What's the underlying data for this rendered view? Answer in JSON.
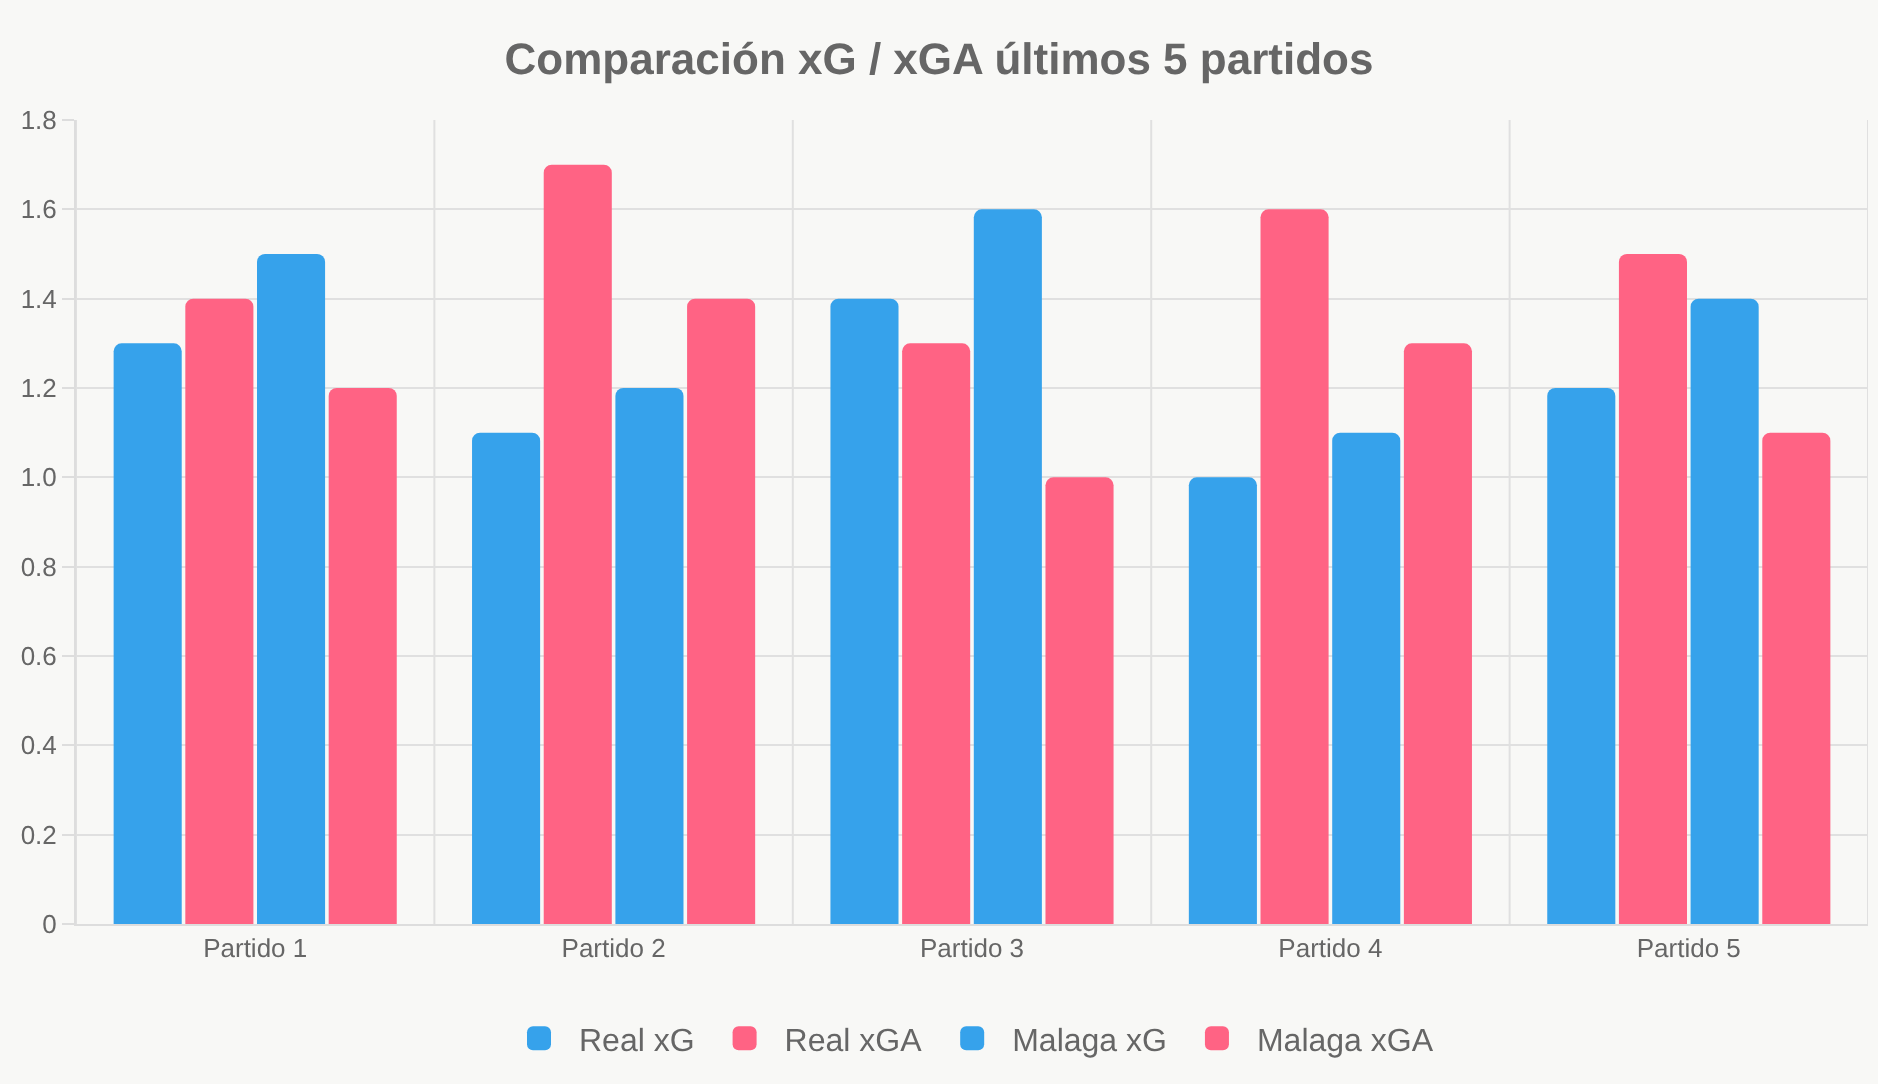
{
  "chart_data": {
    "type": "bar",
    "title": "Comparación xG / xGA últimos 5 partidos",
    "categories": [
      "Partido 1",
      "Partido 2",
      "Partido 3",
      "Partido 4",
      "Partido 5"
    ],
    "series": [
      {
        "name": "Real xG",
        "color": "#36a2eb",
        "values": [
          1.3,
          1.1,
          1.4,
          1.0,
          1.2
        ]
      },
      {
        "name": "Real xGA",
        "color": "#ff6384",
        "values": [
          1.4,
          1.7,
          1.3,
          1.6,
          1.5
        ]
      },
      {
        "name": "Malaga xG",
        "color": "#36a2eb",
        "values": [
          1.5,
          1.2,
          1.6,
          1.1,
          1.4
        ]
      },
      {
        "name": "Malaga xGA",
        "color": "#ff6384",
        "values": [
          1.2,
          1.4,
          1.0,
          1.3,
          1.1
        ]
      }
    ],
    "ylim": [
      0,
      1.8
    ],
    "yticks": [
      0,
      {
        "value": 0.2,
        "label": "0.2"
      },
      {
        "value": 0.4,
        "label": "0.4"
      },
      {
        "value": 0.6,
        "label": "0.6"
      },
      {
        "value": 0.8,
        "label": "0.8"
      },
      {
        "value": 1.0,
        "label": "1.0"
      },
      {
        "value": 1.2,
        "label": "1.2"
      },
      {
        "value": 1.4,
        "label": "1.4"
      },
      {
        "value": 1.6,
        "label": "1.6"
      },
      {
        "value": 1.8,
        "label": "1.8"
      }
    ],
    "grid": true,
    "legend": "bottom"
  }
}
